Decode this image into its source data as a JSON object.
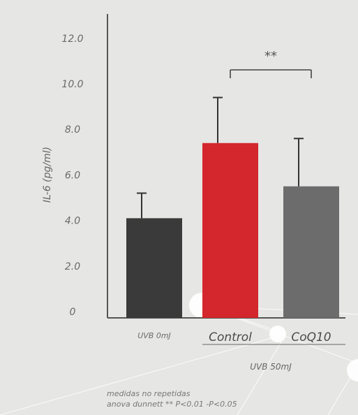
{
  "chart_data": {
    "type": "bar",
    "categories": [
      "UVB 0mJ",
      "Control",
      "CoQ10"
    ],
    "values": [
      4.1,
      7.4,
      5.5
    ],
    "error_upper": [
      5.2,
      9.4,
      7.6
    ],
    "bar_colors": [
      "#3a3a3a",
      "#d3262d",
      "#6c6c6c"
    ],
    "ylabel": "IL-6 (pg/ml)",
    "yticks": [
      "12.0",
      "10.0",
      "8.0",
      "6.0",
      "4.0",
      "2.0",
      "0"
    ],
    "ylim": [
      0,
      12.6
    ],
    "group_label": "UVB 50mJ",
    "significance": "**",
    "significance_pair": [
      "Control",
      "CoQ10"
    ],
    "footnote_lines": [
      "medidas no repetidas",
      "anova dunnett ** P<0.01 -P<0.05"
    ]
  },
  "colors": {
    "background": "#e6e6e4",
    "axis": "#555555",
    "text": "#666666"
  }
}
